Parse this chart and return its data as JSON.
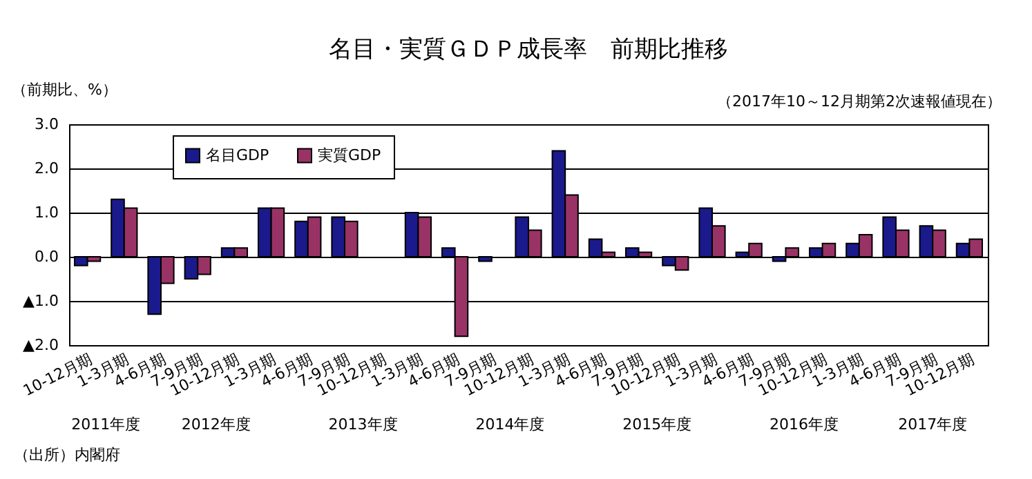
{
  "chart_data": {
    "type": "bar",
    "title": "名目・実質ＧＤＰ成長率　前期比推移",
    "subtitle": "（2017年10～12月期第2次速報値現在）",
    "ylabel": "（前期比、%）",
    "categories": [
      "10-12月期",
      "1-3月期",
      "4-6月期",
      "7-9月期",
      "10-12月期",
      "1-3月期",
      "4-6月期",
      "7-9月期",
      "10-12月期",
      "1-3月期",
      "4-6月期",
      "7-9月期",
      "10-12月期",
      "1-3月期",
      "4-6月期",
      "7-9月期",
      "10-12月期",
      "1-3月期",
      "4-6月期",
      "7-9月期",
      "10-12月期",
      "1-3月期",
      "4-6月期",
      "7-9月期",
      "10-12月期"
    ],
    "series": [
      {
        "name": "名目GDP",
        "color": "#1a1a8c",
        "values": [
          -0.2,
          1.3,
          -1.3,
          -0.5,
          0.2,
          1.1,
          0.8,
          0.9,
          0.0,
          1.0,
          0.2,
          -0.1,
          0.9,
          2.4,
          0.4,
          0.2,
          -0.2,
          1.1,
          0.1,
          -0.1,
          0.2,
          0.3,
          0.9,
          0.7,
          0.3
        ]
      },
      {
        "name": "実質GDP",
        "color": "#993366",
        "values": [
          -0.1,
          1.1,
          -0.6,
          -0.4,
          0.2,
          1.1,
          0.9,
          0.8,
          0.0,
          0.9,
          -1.8,
          0.0,
          0.6,
          1.4,
          0.1,
          0.1,
          -0.3,
          0.7,
          0.3,
          0.2,
          0.3,
          0.5,
          0.6,
          0.6,
          0.4
        ]
      }
    ],
    "ylim": [
      -2,
      3
    ],
    "yticks": [
      {
        "value": -2,
        "label": "▲2.0"
      },
      {
        "value": -1,
        "label": "▲1.0"
      },
      {
        "value": 0,
        "label": "0.0"
      },
      {
        "value": 1,
        "label": "1.0"
      },
      {
        "value": 2,
        "label": "2.0"
      },
      {
        "value": 3,
        "label": "3.0"
      }
    ],
    "grid": "y",
    "legend": "top left",
    "annotations": [
      "2011年度",
      "2012年度",
      "2013年度",
      "2014年度",
      "2015年度",
      "2016年度",
      "2017年度",
      "（出所）内閣府"
    ]
  }
}
